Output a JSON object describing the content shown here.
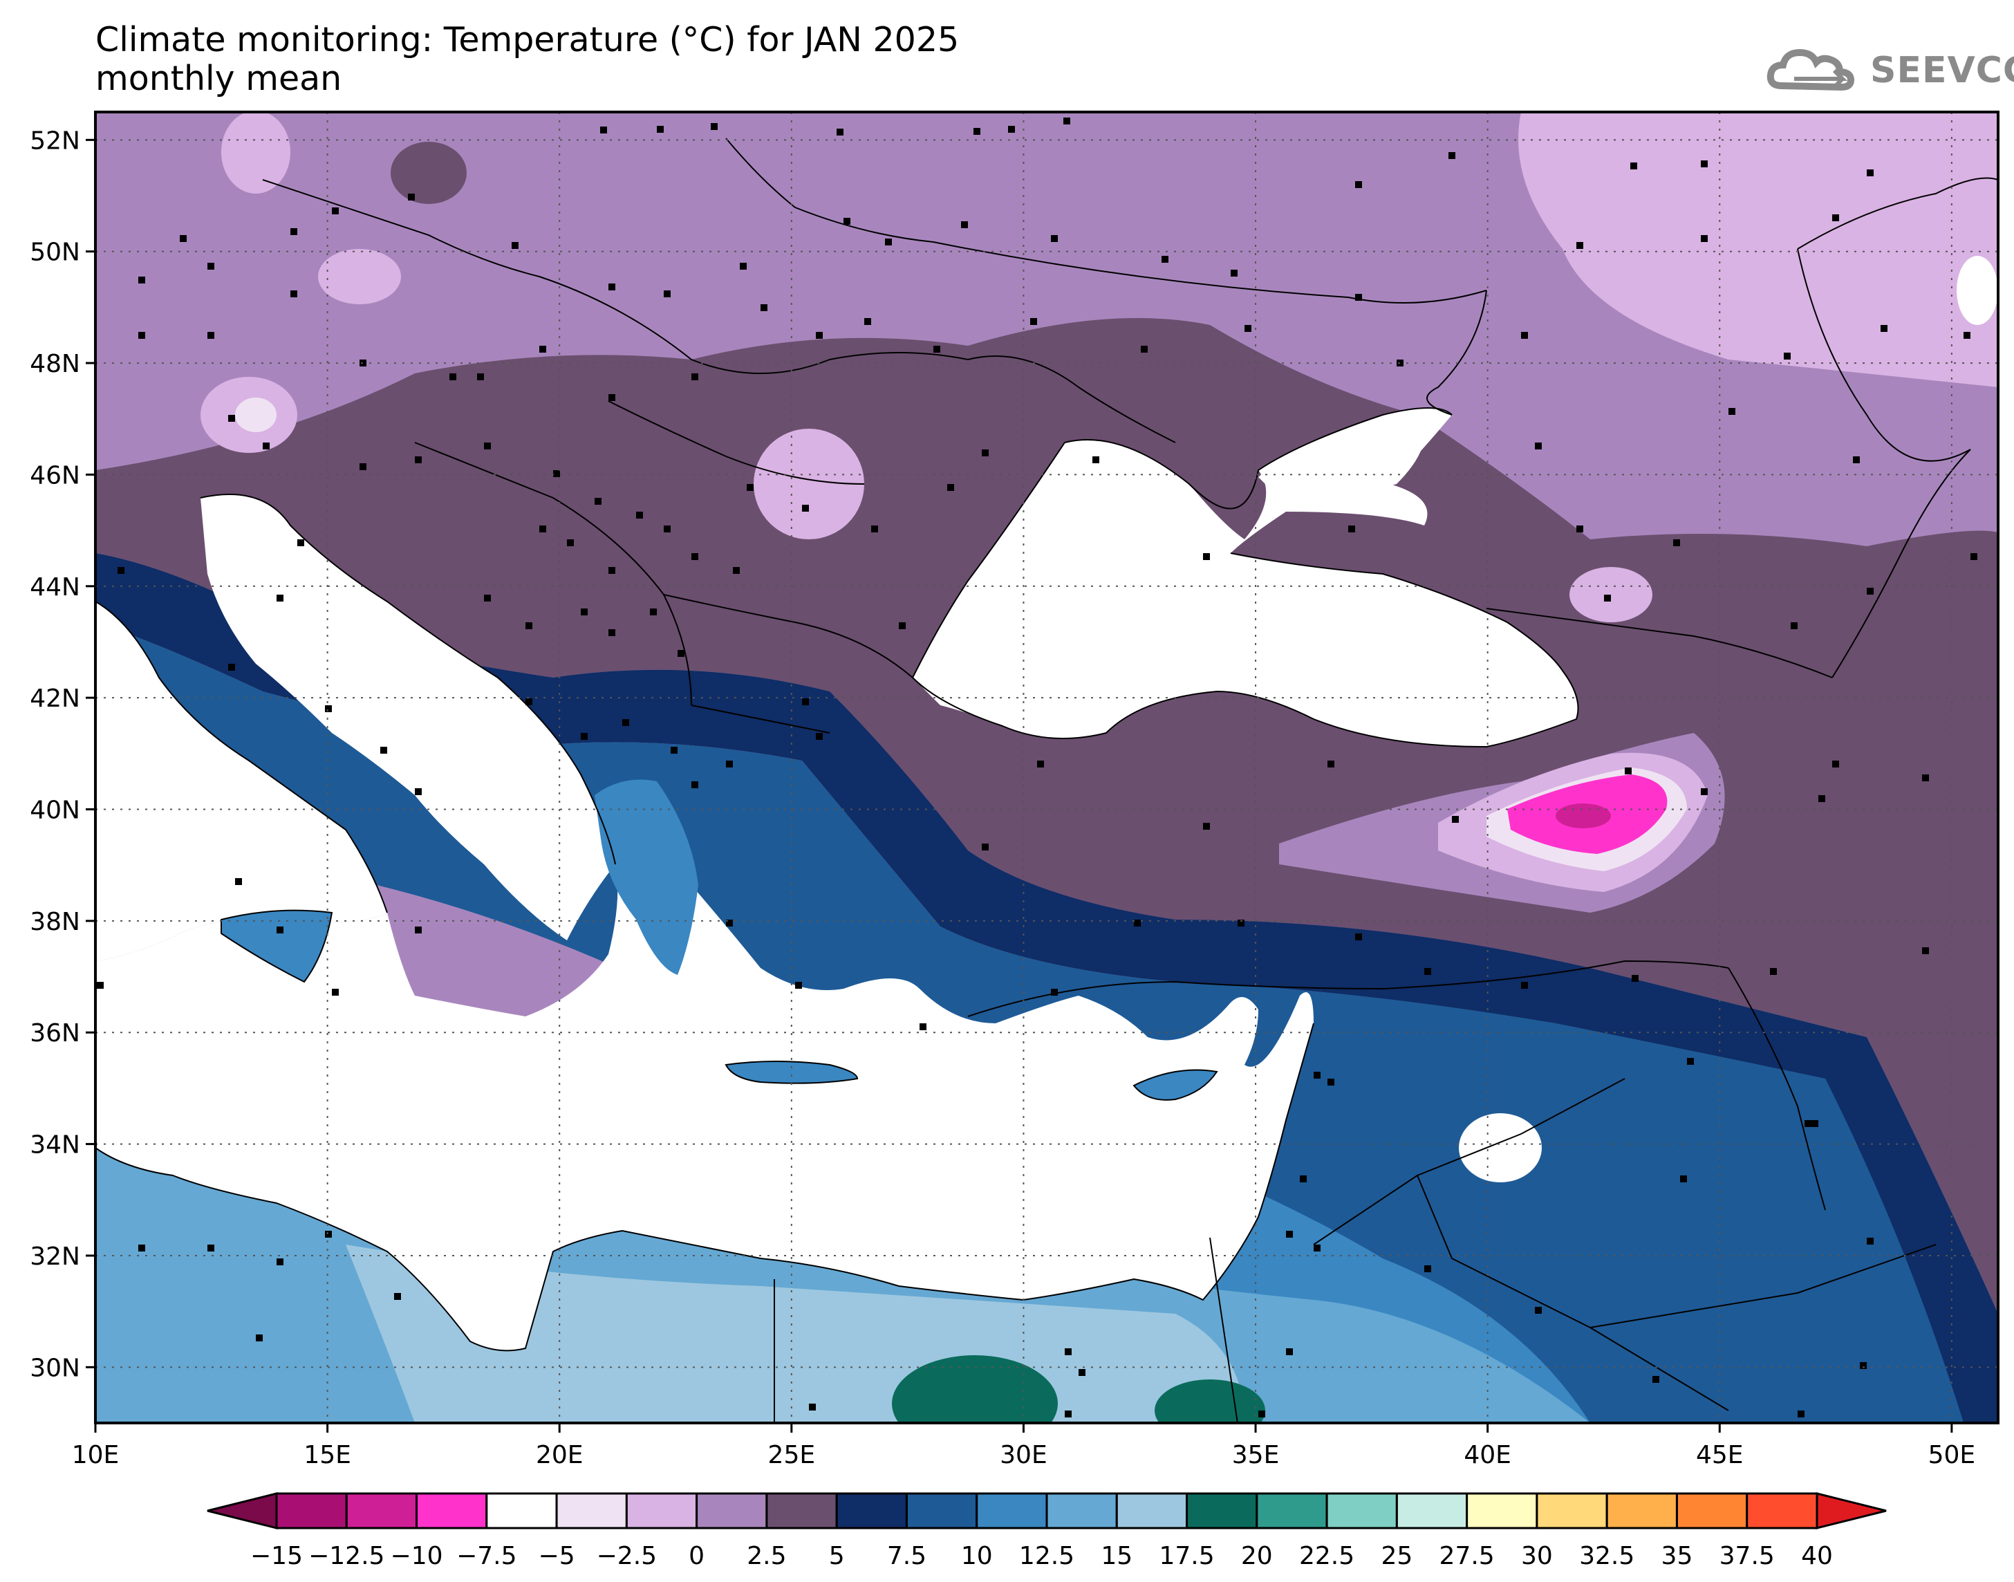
{
  "header": {
    "title_line1": "Climate monitoring: Temperature (°C) for JAN 2025",
    "title_line2": "monthly mean",
    "logo_text": "SEEVCCC",
    "logo_icon": "cloud-icon"
  },
  "map": {
    "variable": "Temperature (°C)",
    "period": "JAN 2025",
    "statistic": "monthly mean",
    "lon_range": [
      10,
      51
    ],
    "lat_range": [
      29,
      52.5
    ],
    "lon_ticks": [
      "10E",
      "15E",
      "20E",
      "25E",
      "30E",
      "35E",
      "40E",
      "45E",
      "50E"
    ],
    "lon_values": [
      10,
      15,
      20,
      25,
      30,
      35,
      40,
      45,
      50
    ],
    "lat_ticks": [
      "30N",
      "32N",
      "34N",
      "36N",
      "38N",
      "40N",
      "42N",
      "44N",
      "46N",
      "48N",
      "50N",
      "52N"
    ],
    "lat_values": [
      30,
      32,
      34,
      36,
      38,
      40,
      42,
      44,
      46,
      48,
      50,
      52
    ],
    "sea_fill": "#ffffff",
    "gridlines": "dotted"
  },
  "colorbar": {
    "labels": [
      "−15",
      "−12.5",
      "−10",
      "−7.5",
      "−5",
      "−2.5",
      "0",
      "2.5",
      "5",
      "7.5",
      "10",
      "12.5",
      "15",
      "17.5",
      "20",
      "22.5",
      "25",
      "27.5",
      "30",
      "32.5",
      "35",
      "37.5",
      "40"
    ],
    "colors": [
      "#7a0a4a",
      "#a90f73",
      "#cf1f96",
      "#ff33cc",
      "#ffffff",
      "#efe3f3",
      "#d9b3e3",
      "#a886bd",
      "#6b4f6f",
      "#0f2d66",
      "#1e5a96",
      "#3a87c2",
      "#65a8d3",
      "#9dc7e0",
      "#0a6b5c",
      "#2f9b8d",
      "#7fcfc4",
      "#c7ece4",
      "#fffdc0",
      "#ffd97a",
      "#ffb04a",
      "#ff8533",
      "#ff4d2e",
      "#e01b20"
    ]
  }
}
